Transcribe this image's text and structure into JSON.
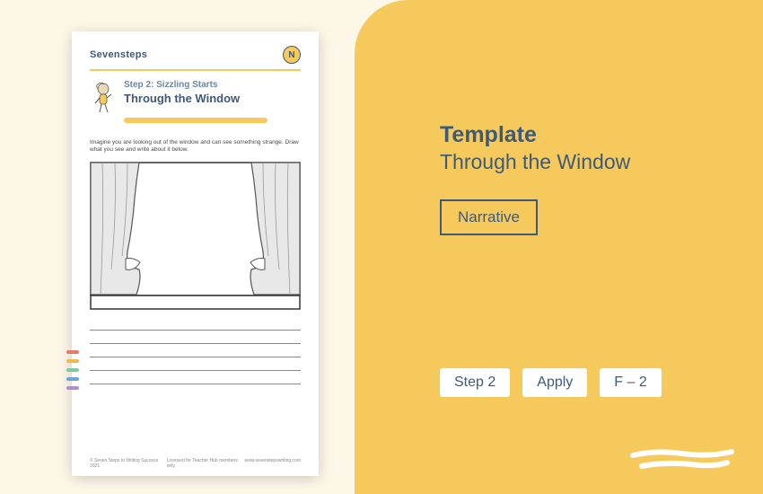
{
  "card": {
    "type_label": "Template",
    "title": "Through the Window",
    "category": "Narrative",
    "tags": [
      "Step 2",
      "Apply",
      "F – 2"
    ],
    "colors": {
      "accent": "#f6c95c",
      "cream": "#fdf7e8",
      "navy": "#3e5a78",
      "white": "#ffffff"
    }
  },
  "worksheet": {
    "brand": "Sevensteps",
    "badge_letter": "N",
    "step_label": "Step 2: Sizzling Starts",
    "subtitle": "Through the Window",
    "instruction": "Imagine you are looking out of the window and can see something strange. Draw what you see and write about it below.",
    "writing_line_count": 5,
    "color_tabs": [
      "#e87a6a",
      "#f0b84f",
      "#7fc9a8",
      "#6ea5d8",
      "#b38ed1"
    ],
    "footer": {
      "left": "© Seven Steps to Writing Success 2021",
      "center": "Licensed for Teacher Hub members only",
      "right": "www.sevenstepswriting.com"
    },
    "window": {
      "curtain_fill": "#e8e8e8",
      "curtain_stroke": "#555555",
      "frame_stroke": "#333333",
      "sill_fill": "#ffffff"
    }
  }
}
